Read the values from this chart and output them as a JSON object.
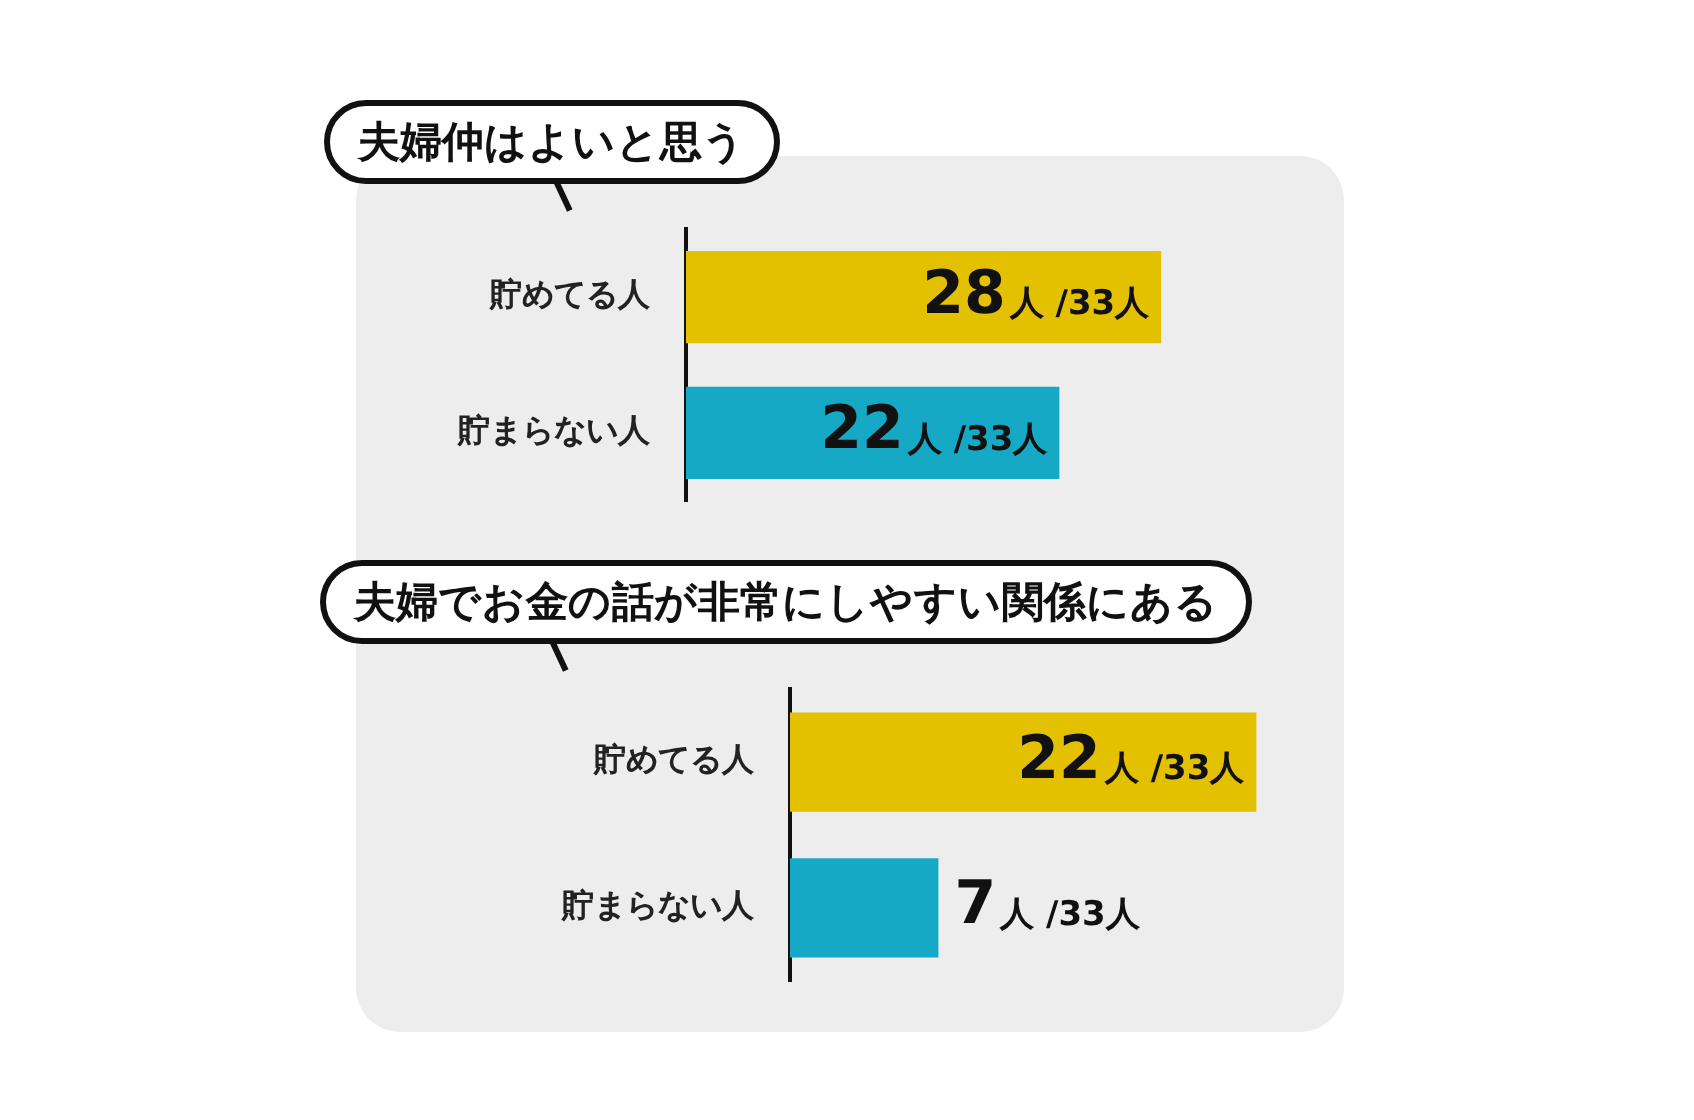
{
  "chart_data": [
    {
      "type": "bar",
      "orientation": "horizontal",
      "title": "夫婦仲はよいと思う",
      "categories": [
        "貯めてる人",
        "貯まらない人"
      ],
      "values": [
        28,
        22
      ],
      "colors": [
        "#e3c000",
        "#16a9c6"
      ],
      "value_labels": [
        "28人 /33人",
        "22人 /33人"
      ],
      "tick_labels": "y"
    },
    {
      "type": "bar",
      "orientation": "horizontal",
      "title": "夫婦でお金の話が非常にしやすい関係にある",
      "categories": [
        "貯めてる人",
        "貯まらない人"
      ],
      "values": [
        22,
        7
      ],
      "colors": [
        "#e3c000",
        "#16a9c6"
      ],
      "value_labels": [
        "22人 /33人",
        "7人 /33人"
      ],
      "tick_labels": "y"
    }
  ]
}
